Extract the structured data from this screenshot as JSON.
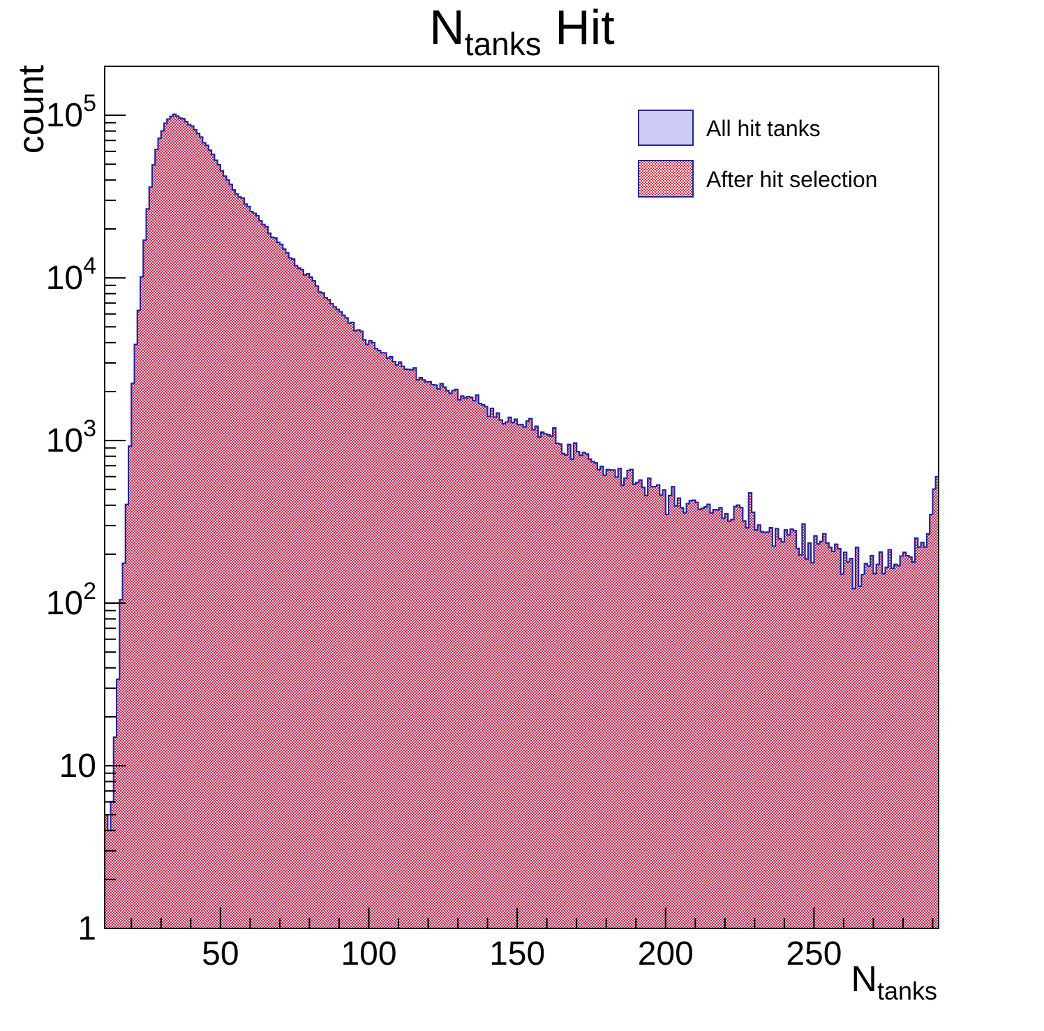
{
  "colors": {
    "fill_all": "#ccccf7",
    "hatch_red": "#dc2c3c",
    "edge_blue": "#232399",
    "frame": "#000000",
    "background": "#ffffff",
    "text": "#000000"
  },
  "chart_data": {
    "type": "histogram",
    "title": {
      "prefix": "N",
      "subscript": "tanks",
      "suffix": " Hit"
    },
    "xlabel": {
      "prefix": "N",
      "subscript": "tanks"
    },
    "ylabel": "count",
    "x_range": [
      11,
      292
    ],
    "bin_width": 1,
    "yscale": "log",
    "ylim": [
      1,
      200000
    ],
    "grid": false,
    "x_major_ticks": [
      50,
      100,
      150,
      200,
      250
    ],
    "x_minor_tick_step": 10,
    "y_tick_labels": [
      {
        "value": 1,
        "base": "1",
        "exp": ""
      },
      {
        "value": 10,
        "base": "10",
        "exp": ""
      },
      {
        "value": 100,
        "base": "10",
        "exp": "2"
      },
      {
        "value": 1000,
        "base": "10",
        "exp": "3"
      },
      {
        "value": 10000,
        "base": "10",
        "exp": "4"
      },
      {
        "value": 100000,
        "base": "10",
        "exp": "5"
      }
    ],
    "legend_position": "top-right",
    "series": [
      {
        "name": "All hit tanks",
        "style": "solid-lavender-fill-blue-edge",
        "peak": {
          "x": 34,
          "count": 101000
        },
        "anchors": [
          [
            11,
            2
          ],
          [
            12,
            3
          ],
          [
            13,
            5
          ],
          [
            14,
            10
          ],
          [
            15,
            22
          ],
          [
            16,
            55
          ],
          [
            17,
            130
          ],
          [
            18,
            300
          ],
          [
            19,
            700
          ],
          [
            20,
            1500
          ],
          [
            21,
            2900
          ],
          [
            22,
            4800
          ],
          [
            23,
            7800
          ],
          [
            24,
            13500
          ],
          [
            25,
            21500
          ],
          [
            26,
            31000
          ],
          [
            27,
            43000
          ],
          [
            28,
            56000
          ],
          [
            29,
            67000
          ],
          [
            30,
            77000
          ],
          [
            31,
            85000
          ],
          [
            32,
            92000
          ],
          [
            33,
            97500
          ],
          [
            34,
            101000
          ],
          [
            35,
            100000
          ],
          [
            36,
            98000
          ],
          [
            38,
            93000
          ],
          [
            40,
            87000
          ],
          [
            42,
            79000
          ],
          [
            44,
            71000
          ],
          [
            46,
            63000
          ],
          [
            48,
            55000
          ],
          [
            50,
            47500
          ],
          [
            52,
            41000
          ],
          [
            55,
            34000
          ],
          [
            58,
            29000
          ],
          [
            60,
            26500
          ],
          [
            63,
            23000
          ],
          [
            65,
            20500
          ],
          [
            68,
            17800
          ],
          [
            70,
            16200
          ],
          [
            73,
            14000
          ],
          [
            75,
            12600
          ],
          [
            78,
            11000
          ],
          [
            80,
            9900
          ],
          [
            83,
            8700
          ],
          [
            85,
            7900
          ],
          [
            88,
            6900
          ],
          [
            90,
            6300
          ],
          [
            93,
            5500
          ],
          [
            95,
            5000
          ],
          [
            98,
            4400
          ],
          [
            100,
            4000
          ],
          [
            103,
            3700
          ],
          [
            105,
            3450
          ],
          [
            108,
            3150
          ],
          [
            110,
            2980
          ],
          [
            113,
            2760
          ],
          [
            115,
            2620
          ],
          [
            118,
            2440
          ],
          [
            120,
            2330
          ],
          [
            123,
            2210
          ],
          [
            125,
            2130
          ],
          [
            128,
            2020
          ],
          [
            130,
            1950
          ],
          [
            133,
            1840
          ],
          [
            135,
            1770
          ],
          [
            138,
            1680
          ],
          [
            140,
            1610
          ],
          [
            143,
            1510
          ],
          [
            145,
            1450
          ],
          [
            148,
            1350
          ],
          [
            150,
            1290
          ],
          [
            153,
            1230
          ],
          [
            155,
            1180
          ],
          [
            158,
            1110
          ],
          [
            160,
            1060
          ],
          [
            163,
            1000
          ],
          [
            165,
            960
          ],
          [
            168,
            905
          ],
          [
            170,
            865
          ],
          [
            173,
            810
          ],
          [
            175,
            770
          ],
          [
            178,
            725
          ],
          [
            180,
            695
          ],
          [
            183,
            660
          ],
          [
            185,
            635
          ],
          [
            188,
            600
          ],
          [
            190,
            575
          ],
          [
            193,
            545
          ],
          [
            195,
            525
          ],
          [
            198,
            500
          ],
          [
            200,
            485
          ],
          [
            203,
            465
          ],
          [
            205,
            450
          ],
          [
            208,
            432
          ],
          [
            210,
            418
          ],
          [
            213,
            400
          ],
          [
            215,
            388
          ],
          [
            218,
            370
          ],
          [
            220,
            360
          ],
          [
            223,
            345
          ],
          [
            225,
            335
          ],
          [
            228,
            320
          ],
          [
            230,
            312
          ],
          [
            233,
            300
          ],
          [
            235,
            292
          ],
          [
            238,
            280
          ],
          [
            240,
            273
          ],
          [
            243,
            263
          ],
          [
            245,
            257
          ],
          [
            248,
            249
          ],
          [
            250,
            244
          ],
          [
            253,
            233
          ],
          [
            255,
            226
          ],
          [
            258,
            214
          ],
          [
            260,
            206
          ],
          [
            263,
            190
          ],
          [
            266,
            174
          ],
          [
            269,
            163
          ],
          [
            272,
            165
          ],
          [
            274,
            172
          ],
          [
            276,
            178
          ],
          [
            278,
            172
          ],
          [
            280,
            186
          ],
          [
            282,
            192
          ],
          [
            284,
            203
          ],
          [
            286,
            224
          ],
          [
            287,
            242
          ],
          [
            288,
            270
          ],
          [
            289,
            335
          ],
          [
            290,
            430
          ],
          [
            291,
            535
          ],
          [
            292,
            535
          ]
        ]
      },
      {
        "name": "After hit selection",
        "style": "red-checker-hatch-blue-edge",
        "anchors": "same_as_series_0",
        "note": "fully overlaps the first histogram"
      }
    ],
    "noise": {
      "seed": 7,
      "coeff": 2.2,
      "max_rel": 0.25
    }
  }
}
